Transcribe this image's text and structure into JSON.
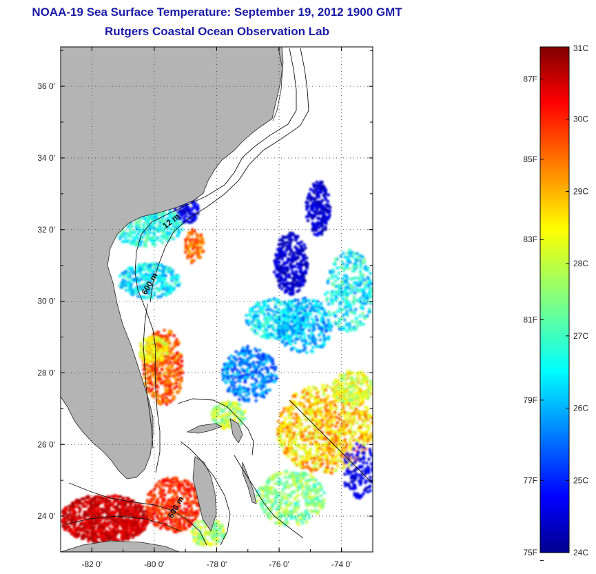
{
  "title": {
    "line1": "NOAA-19 Sea Surface Temperature:  September 19, 2012 1900 GMT",
    "line2": "Rutgers Coastal Ocean Observation Lab"
  },
  "map": {
    "lon_range": [
      -83,
      -73
    ],
    "lat_range": [
      23,
      37.1
    ],
    "lon_ticks": [
      {
        "value": -82,
        "label": "-82 0'"
      },
      {
        "value": -80,
        "label": "-80 0'"
      },
      {
        "value": -78,
        "label": "-78 0'"
      },
      {
        "value": -76,
        "label": "-76 0'"
      },
      {
        "value": -74,
        "label": "-74 0'"
      }
    ],
    "lat_ticks": [
      {
        "value": 24,
        "label": "24 0'"
      },
      {
        "value": 26,
        "label": "26 0'"
      },
      {
        "value": 28,
        "label": "28 0'"
      },
      {
        "value": 30,
        "label": "30 0'"
      },
      {
        "value": 32,
        "label": "32 0'"
      },
      {
        "value": 34,
        "label": "34 0'"
      },
      {
        "value": 36,
        "label": "36 0'"
      }
    ],
    "grid": "dotted",
    "colors": {
      "land": "#b4b4b4",
      "ocean_nodata": "#ffffff",
      "contour": "#111111"
    },
    "contour_labels": [
      {
        "text": "12 m"
      },
      {
        "text": "600 m"
      },
      {
        "text": "600 m"
      }
    ]
  },
  "colorbar": {
    "min_c": 24,
    "max_c": 31,
    "colormap": "jet",
    "celsius_ticks": [
      {
        "value": 31,
        "label": "31C"
      },
      {
        "value": 30,
        "label": "30C"
      },
      {
        "value": 29,
        "label": "29C"
      },
      {
        "value": 28,
        "label": "28C"
      },
      {
        "value": 27,
        "label": "27C"
      },
      {
        "value": 26,
        "label": "26C"
      },
      {
        "value": 25,
        "label": "25C"
      },
      {
        "value": 24,
        "label": "24C"
      }
    ],
    "fahrenheit_ticks": [
      {
        "value": 87,
        "label": "87F"
      },
      {
        "value": 85,
        "label": "85F"
      },
      {
        "value": 83,
        "label": "83F"
      },
      {
        "value": 81,
        "label": "81F"
      },
      {
        "value": 79,
        "label": "79F"
      },
      {
        "value": 77,
        "label": "77F"
      },
      {
        "value": 75,
        "label": "75F"
      }
    ]
  }
}
